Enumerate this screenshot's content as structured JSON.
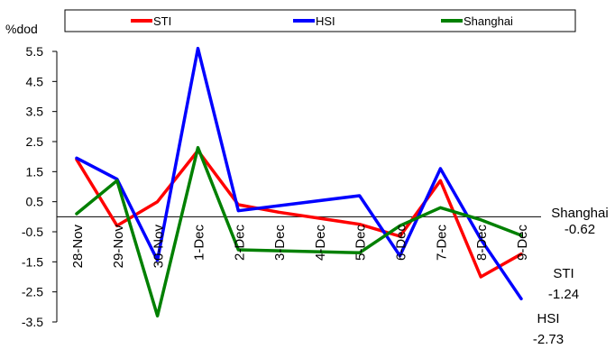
{
  "chart_data": {
    "type": "line",
    "ylabel": "%dod",
    "ylim": [
      -3.5,
      5.5
    ],
    "yticks": [
      5.5,
      4.5,
      3.5,
      2.5,
      1.5,
      0.5,
      -0.5,
      -1.5,
      -2.5,
      -3.5
    ],
    "legend_position": "top",
    "categories": [
      "28-Nov",
      "29-Nov",
      "30-Nov",
      "1-Dec",
      "2-Dec",
      "3-Dec",
      "4-Dec",
      "5-Dec",
      "6-Dec",
      "7-Dec",
      "8-Dec",
      "9-Dec"
    ],
    "series": [
      {
        "name": "STI",
        "color": "#ff0000",
        "values": [
          1.9,
          -0.3,
          0.5,
          2.2,
          0.4,
          0.15,
          -0.05,
          -0.25,
          -0.65,
          1.2,
          -2.0,
          -1.24
        ],
        "end_label": "STI",
        "end_value": "-1.24"
      },
      {
        "name": "HSI",
        "color": "#0000ff",
        "values": [
          1.95,
          1.25,
          -1.45,
          5.6,
          0.2,
          null,
          null,
          0.7,
          -1.3,
          1.6,
          -0.75,
          -2.73
        ],
        "end_label": "HSI",
        "end_value": "-2.73"
      },
      {
        "name": "Shanghai",
        "color": "#008000",
        "values": [
          0.1,
          1.2,
          -3.3,
          2.3,
          -1.1,
          null,
          null,
          -1.2,
          -0.3,
          0.3,
          -0.1,
          -0.62
        ],
        "end_label": "Shanghai",
        "end_value": "-0.62"
      }
    ]
  }
}
